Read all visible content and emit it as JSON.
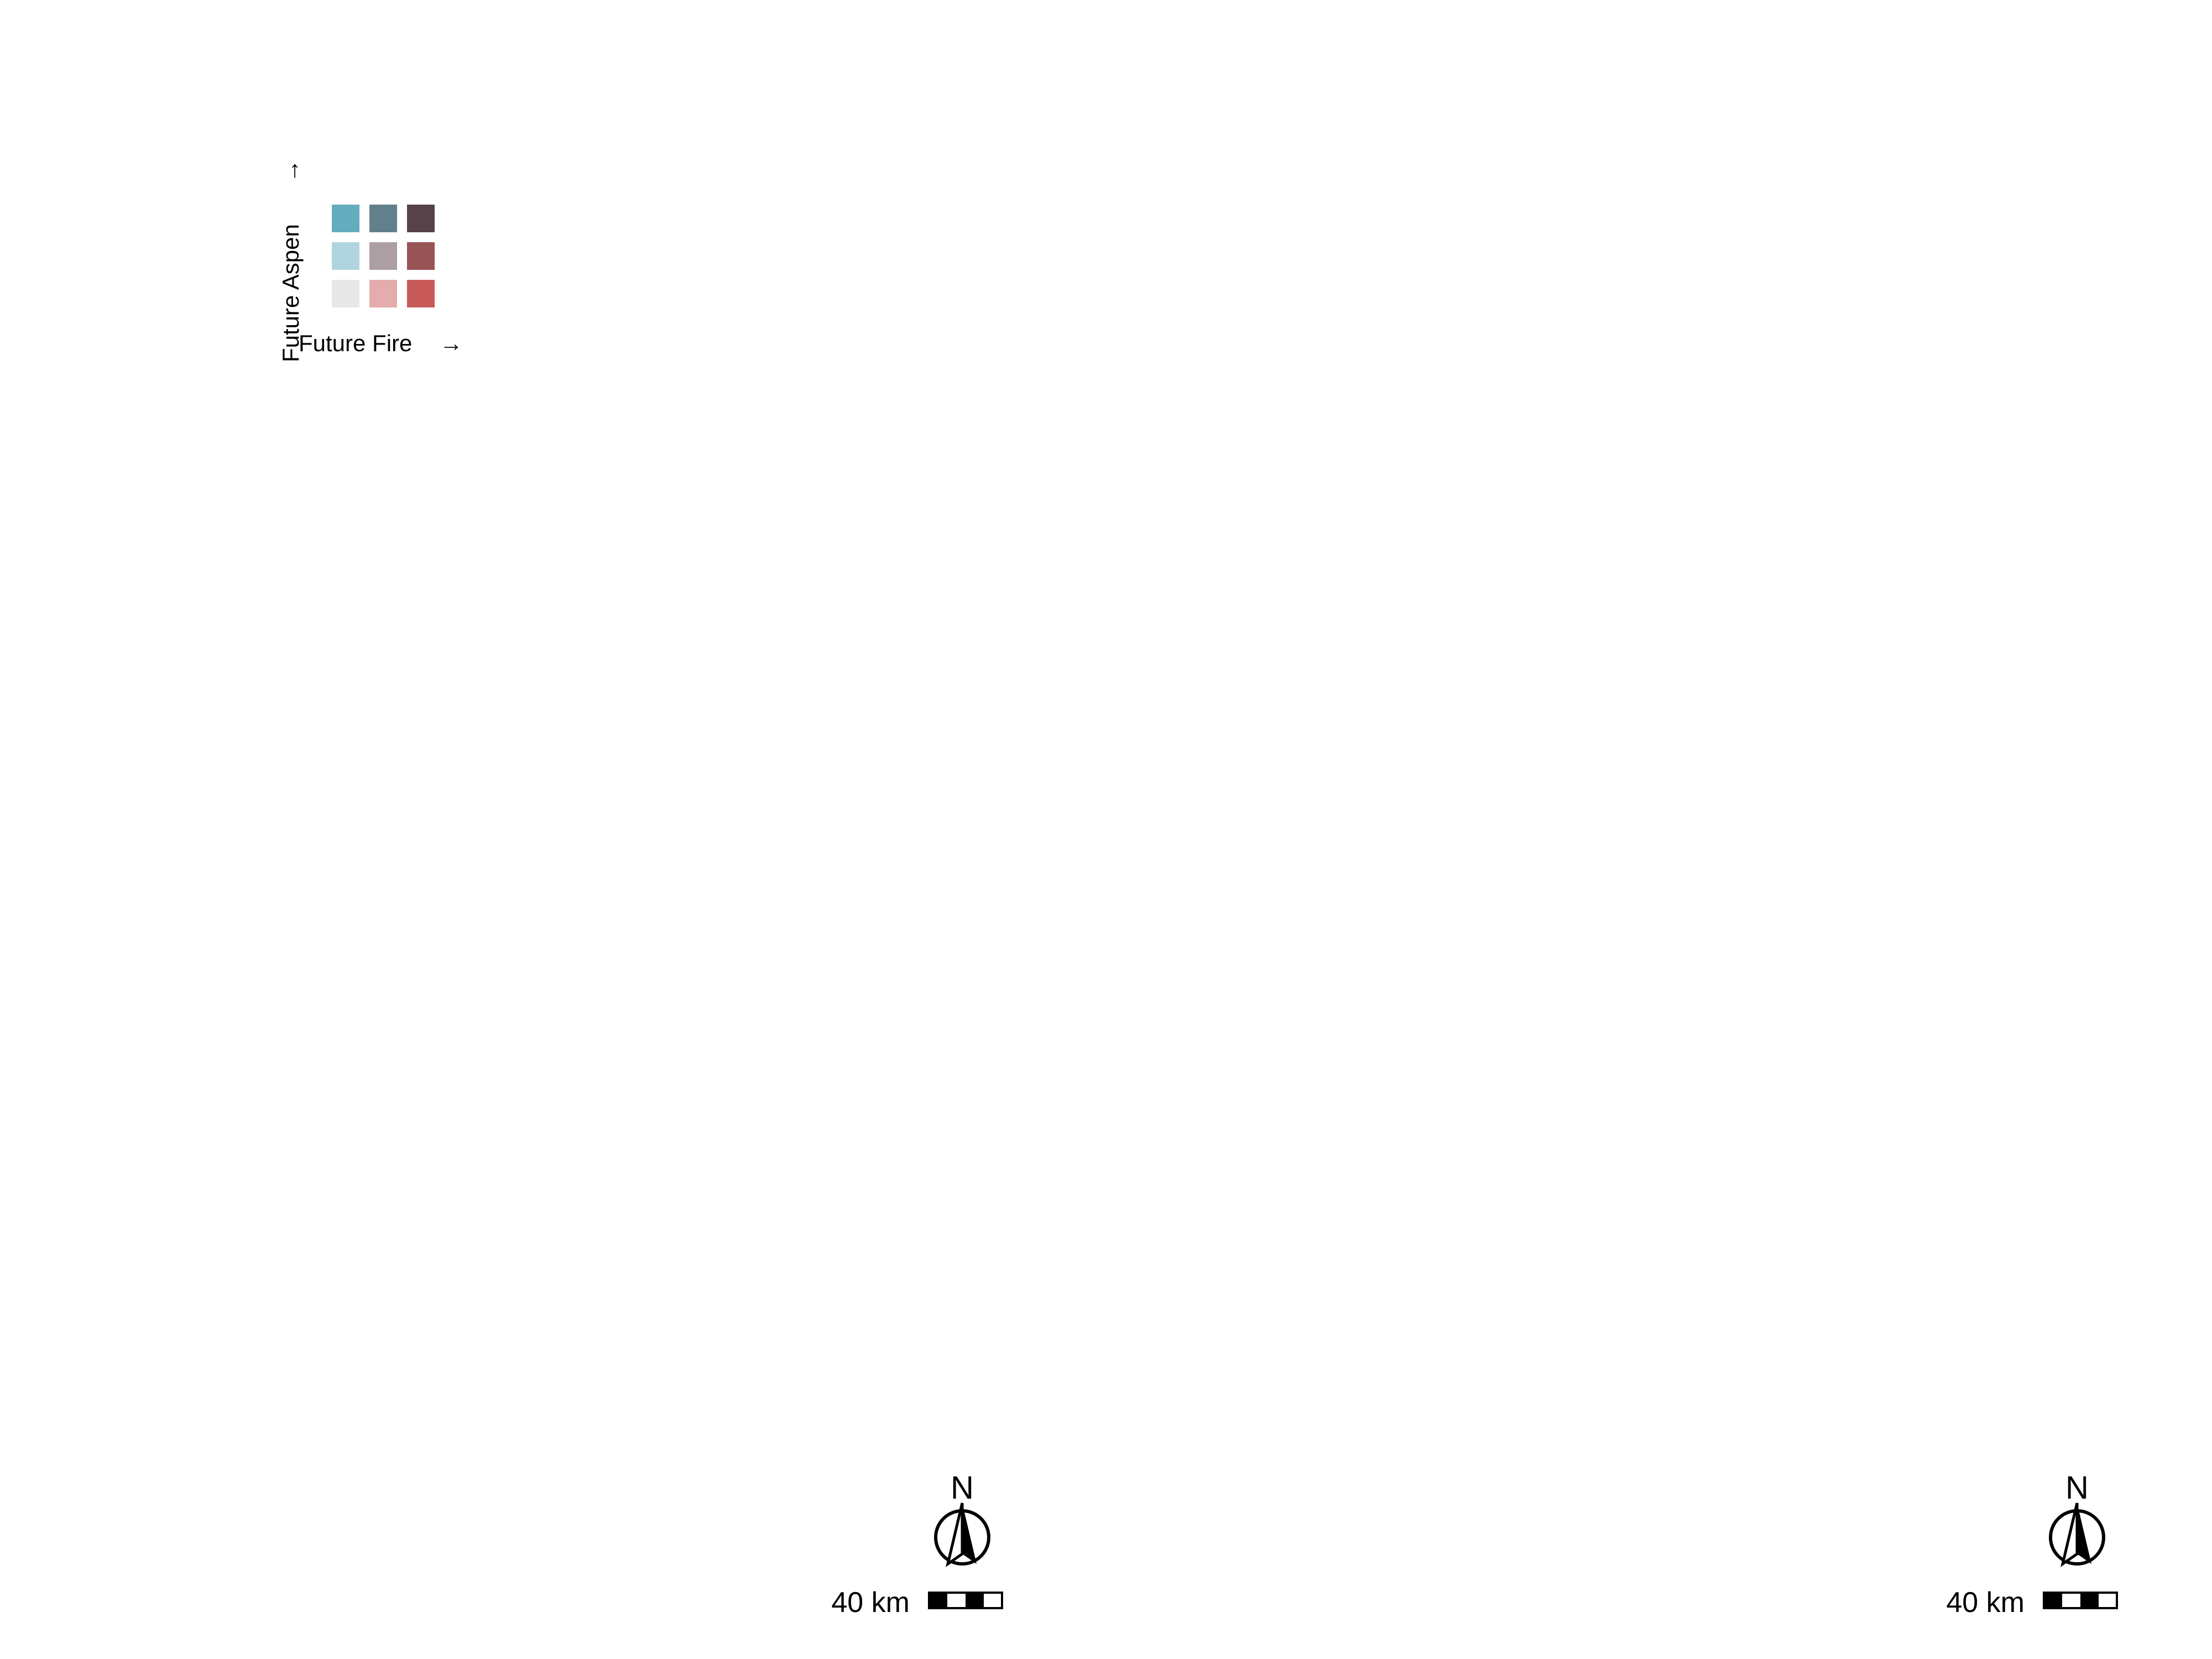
{
  "legend": {
    "y_label": "Future Aspen",
    "x_label": "Future Fire",
    "arrow": "→",
    "grid": [
      [
        "#64acbe",
        "#627f8c",
        "#574249"
      ],
      [
        "#b0d5df",
        "#ad9ea5",
        "#985356"
      ],
      [
        "#e8e8e8",
        "#e4acac",
        "#c85a5a"
      ]
    ]
  },
  "panels": [
    {
      "id": "left",
      "scale_label": "40 km",
      "north_label": "N"
    },
    {
      "id": "right",
      "scale_label": "40 km",
      "north_label": "N"
    }
  ],
  "colors": {
    "c00": "#e8e8e8",
    "c10": "#e4acac",
    "c20": "#c85a5a",
    "c01": "#b0d5df",
    "c11": "#ad9ea5",
    "c21": "#985356",
    "c02": "#64acbe",
    "c12": "#627f8c",
    "c22": "#574249"
  }
}
